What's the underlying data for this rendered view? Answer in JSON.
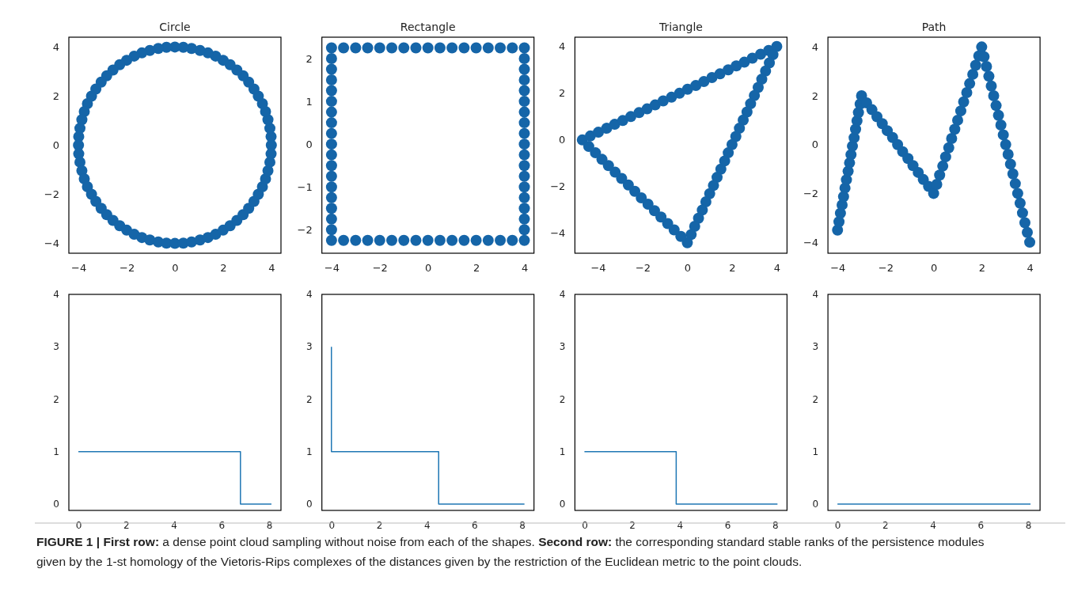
{
  "chart_data": [
    {
      "type": "scatter",
      "title": "Circle",
      "marker": "circle",
      "color": "#1565a8",
      "xlim": [
        -4.4,
        4.4
      ],
      "ylim": [
        -4.4,
        4.4
      ],
      "xticks": [
        -4,
        -2,
        0,
        2,
        4
      ],
      "yticks": [
        -4,
        -2,
        0,
        2,
        4
      ],
      "x": [
        4,
        3.99,
        3.94,
        3.86,
        3.76,
        3.63,
        3.46,
        3.28,
        3.06,
        2.83,
        2.57,
        2.29,
        2,
        1.69,
        1.37,
        1.04,
        0.69,
        0.35,
        0,
        -0.35,
        -0.69,
        -1.04,
        -1.37,
        -1.69,
        -2,
        -2.29,
        -2.57,
        -2.83,
        -3.06,
        -3.28,
        -3.46,
        -3.63,
        -3.76,
        -3.86,
        -3.94,
        -3.99,
        -4,
        -3.99,
        -3.94,
        -3.86,
        -3.76,
        -3.63,
        -3.46,
        -3.28,
        -3.06,
        -2.83,
        -2.57,
        -2.29,
        -2,
        -1.69,
        -1.37,
        -1.04,
        -0.69,
        -0.35,
        0,
        0.35,
        0.69,
        1.04,
        1.37,
        1.69,
        2,
        2.29,
        2.57,
        2.83,
        3.06,
        3.28,
        3.46,
        3.63,
        3.76,
        3.86,
        3.94,
        3.99
      ],
      "values": [
        0,
        0.35,
        0.69,
        1.04,
        1.37,
        1.69,
        2,
        2.29,
        2.57,
        2.83,
        3.06,
        3.28,
        3.46,
        3.63,
        3.76,
        3.86,
        3.94,
        3.99,
        4,
        3.99,
        3.94,
        3.86,
        3.76,
        3.63,
        3.46,
        3.28,
        3.06,
        2.83,
        2.57,
        2.29,
        2,
        1.69,
        1.37,
        1.04,
        0.69,
        0.35,
        0,
        -0.35,
        -0.69,
        -1.04,
        -1.37,
        -1.69,
        -2,
        -2.29,
        -2.57,
        -2.83,
        -3.06,
        -3.28,
        -3.46,
        -3.63,
        -3.76,
        -3.86,
        -3.94,
        -3.99,
        -4,
        -3.99,
        -3.94,
        -3.86,
        -3.76,
        -3.63,
        -3.46,
        -3.28,
        -3.06,
        -2.83,
        -2.57,
        -2.29,
        -2,
        -1.69,
        -1.37,
        -1.04,
        -0.69,
        -0.35
      ],
      "annotations": [
        "FIGURE 1 | First row:",
        " a dense point cloud sampling without noise from each of the shapes. ",
        "Second row:",
        " the corresponding standard stable ranks of the persistence modules given by the 1-st homology of the Vietoris-Rips complexes of the distances given by the restriction of the Euclidean metric to the point clouds."
      ]
    },
    {
      "type": "scatter",
      "title": "Rectangle",
      "marker": "circle",
      "color": "#1565a8",
      "xlim": [
        -4.4,
        4.4
      ],
      "ylim": [
        -2.55,
        2.5
      ],
      "xticks": [
        -4,
        -2,
        0,
        2,
        4
      ],
      "yticks": [
        -2,
        -1,
        0,
        1,
        2
      ],
      "x": [
        -4,
        -3.5,
        -3,
        -2.5,
        -2,
        -1.5,
        -1,
        -0.5,
        0,
        0.5,
        1,
        1.5,
        2,
        2.5,
        3,
        3.5,
        4,
        4,
        4,
        4,
        4,
        4,
        4,
        4,
        4,
        4,
        4,
        4,
        4,
        4,
        4,
        4,
        4,
        4,
        4,
        3.5,
        3,
        2.5,
        2,
        1.5,
        1,
        0.5,
        0,
        -0.5,
        -1,
        -1.5,
        -2,
        -2.5,
        -3,
        -3.5,
        -4,
        -4,
        -4,
        -4,
        -4,
        -4,
        -4,
        -4,
        -4,
        -4,
        -4,
        -4,
        -4,
        -4,
        -4,
        -4,
        -4,
        -4
      ],
      "values": [
        2.25,
        2.25,
        2.25,
        2.25,
        2.25,
        2.25,
        2.25,
        2.25,
        2.25,
        2.25,
        2.25,
        2.25,
        2.25,
        2.25,
        2.25,
        2.25,
        2.25,
        2,
        1.75,
        1.5,
        1.25,
        1,
        0.75,
        0.5,
        0.25,
        0,
        -0.25,
        -0.5,
        -0.75,
        -1,
        -1.25,
        -1.5,
        -1.75,
        -2,
        -2.25,
        -2.25,
        -2.25,
        -2.25,
        -2.25,
        -2.25,
        -2.25,
        -2.25,
        -2.25,
        -2.25,
        -2.25,
        -2.25,
        -2.25,
        -2.25,
        -2.25,
        -2.25,
        -2.25,
        -2,
        -1.75,
        -1.5,
        -1.25,
        -1,
        -0.75,
        -0.5,
        -0.25,
        0,
        0.25,
        0.5,
        0.75,
        1,
        1.25,
        1.5,
        1.75,
        2
      ]
    },
    {
      "type": "scatter",
      "title": "Triangle",
      "marker": "circle",
      "color": "#1565a8",
      "xlim": [
        -5.03,
        4.46
      ],
      "ylim": [
        -4.85,
        4.4
      ],
      "xticks": [
        -4,
        -2,
        0,
        2,
        4
      ],
      "yticks": [
        -4,
        -2,
        0,
        2,
        4
      ],
      "x": [
        -4.7,
        -4.34,
        -3.98,
        -3.61,
        -3.25,
        -2.89,
        -2.53,
        -2.16,
        -1.8,
        -1.44,
        -1.08,
        -0.71,
        -0.35,
        0.01,
        0.38,
        0.74,
        1.1,
        1.46,
        1.83,
        2.19,
        2.55,
        2.91,
        3.28,
        3.64,
        4,
        3.83,
        3.67,
        3.5,
        3.33,
        3.17,
        3,
        2.83,
        2.67,
        2.5,
        2.33,
        2.17,
        2,
        1.83,
        1.67,
        1.5,
        1.33,
        1.17,
        1,
        0.83,
        0.67,
        0.5,
        0.33,
        0.17,
        0,
        -0.29,
        -0.59,
        -0.88,
        -1.18,
        -1.47,
        -1.76,
        -2.06,
        -2.35,
        -2.64,
        -2.94,
        -3.23,
        -3.53,
        -3.82,
        -4.11,
        -4.41
      ],
      "values": [
        0,
        0.17,
        0.33,
        0.5,
        0.67,
        0.83,
        1,
        1.17,
        1.33,
        1.5,
        1.67,
        1.83,
        2,
        2.17,
        2.33,
        2.5,
        2.67,
        2.83,
        3,
        3.17,
        3.33,
        3.5,
        3.67,
        3.83,
        4,
        3.65,
        3.3,
        2.95,
        2.6,
        2.25,
        1.9,
        1.55,
        1.2,
        0.85,
        0.5,
        0.15,
        -0.2,
        -0.55,
        -0.9,
        -1.25,
        -1.6,
        -1.95,
        -2.3,
        -2.65,
        -3,
        -3.35,
        -3.7,
        -4.05,
        -4.4,
        -4.13,
        -3.85,
        -3.58,
        -3.3,
        -3.03,
        -2.75,
        -2.48,
        -2.2,
        -1.93,
        -1.65,
        -1.38,
        -1.1,
        -0.83,
        -0.55,
        -0.28
      ]
    },
    {
      "type": "scatter",
      "title": "Path",
      "marker": "circle",
      "color": "#1565a8",
      "xlim": [
        -4.4,
        4.43
      ],
      "ylim": [
        -4.45,
        4.4
      ],
      "xticks": [
        -4,
        -2,
        0,
        2,
        4
      ],
      "yticks": [
        -4,
        -2,
        0,
        2,
        4
      ],
      "x": [
        -4,
        -3.94,
        -3.88,
        -3.81,
        -3.75,
        -3.69,
        -3.63,
        -3.56,
        -3.5,
        -3.44,
        -3.38,
        -3.31,
        -3.25,
        -3.19,
        -3.13,
        -3.06,
        -3,
        -2.79,
        -2.57,
        -2.36,
        -2.14,
        -1.93,
        -1.71,
        -1.5,
        -1.29,
        -1.07,
        -0.86,
        -0.64,
        -0.43,
        -0.21,
        0,
        0.13,
        0.25,
        0.38,
        0.5,
        0.63,
        0.75,
        0.88,
        1,
        1.13,
        1.25,
        1.38,
        1.5,
        1.63,
        1.75,
        1.88,
        2,
        2.1,
        2.2,
        2.3,
        2.4,
        2.5,
        2.6,
        2.7,
        2.8,
        2.9,
        3,
        3.1,
        3.2,
        3.3,
        3.4,
        3.5,
        3.6,
        3.7,
        3.8,
        3.9,
        4
      ],
      "values": [
        -3.5,
        -3.16,
        -2.81,
        -2.47,
        -2.13,
        -1.78,
        -1.44,
        -1.09,
        -0.75,
        -0.41,
        -0.06,
        0.28,
        0.63,
        0.97,
        1.31,
        1.66,
        2,
        1.71,
        1.43,
        1.14,
        0.86,
        0.57,
        0.29,
        0,
        -0.29,
        -0.57,
        -0.86,
        -1.14,
        -1.43,
        -1.71,
        -2,
        -1.63,
        -1.25,
        -0.88,
        -0.5,
        -0.13,
        0.25,
        0.63,
        1,
        1.38,
        1.75,
        2.13,
        2.5,
        2.88,
        3.25,
        3.63,
        4,
        3.6,
        3.2,
        2.8,
        2.4,
        2,
        1.6,
        1.2,
        0.8,
        0.4,
        0,
        -0.4,
        -0.8,
        -1.2,
        -1.6,
        -2,
        -2.4,
        -2.8,
        -3.2,
        -3.6,
        -4
      ]
    },
    {
      "type": "line",
      "color": "#1f77b4",
      "xlim": [
        -0.4,
        8.5
      ],
      "ylim": [
        -0.12,
        4
      ],
      "xticks": [
        0,
        2,
        4,
        6,
        8
      ],
      "yticks": [
        0,
        1,
        2,
        3,
        4
      ],
      "x": [
        0,
        6.8,
        6.8,
        8.1
      ],
      "values": [
        1,
        1,
        0,
        0
      ]
    },
    {
      "type": "line",
      "color": "#1f77b4",
      "xlim": [
        -0.4,
        8.5
      ],
      "ylim": [
        -0.12,
        4
      ],
      "xticks": [
        0,
        2,
        4,
        6,
        8
      ],
      "yticks": [
        0,
        1,
        2,
        3,
        4
      ],
      "x": [
        0,
        0,
        4.5,
        4.5,
        8.1
      ],
      "values": [
        3,
        1,
        1,
        0,
        0
      ]
    },
    {
      "type": "line",
      "color": "#1f77b4",
      "xlim": [
        -0.4,
        8.5
      ],
      "ylim": [
        -0.12,
        4
      ],
      "xticks": [
        0,
        2,
        4,
        6,
        8
      ],
      "yticks": [
        0,
        1,
        2,
        3,
        4
      ],
      "x": [
        0,
        3.85,
        3.85,
        8.1
      ],
      "values": [
        1,
        1,
        0,
        0
      ]
    },
    {
      "type": "line",
      "color": "#1f77b4",
      "xlim": [
        -0.4,
        8.5
      ],
      "ylim": [
        -0.12,
        4
      ],
      "xticks": [
        0,
        2,
        4,
        6,
        8
      ],
      "yticks": [
        0,
        1,
        2,
        3,
        4
      ],
      "x": [
        0,
        8.1
      ],
      "values": [
        0,
        0
      ]
    }
  ]
}
